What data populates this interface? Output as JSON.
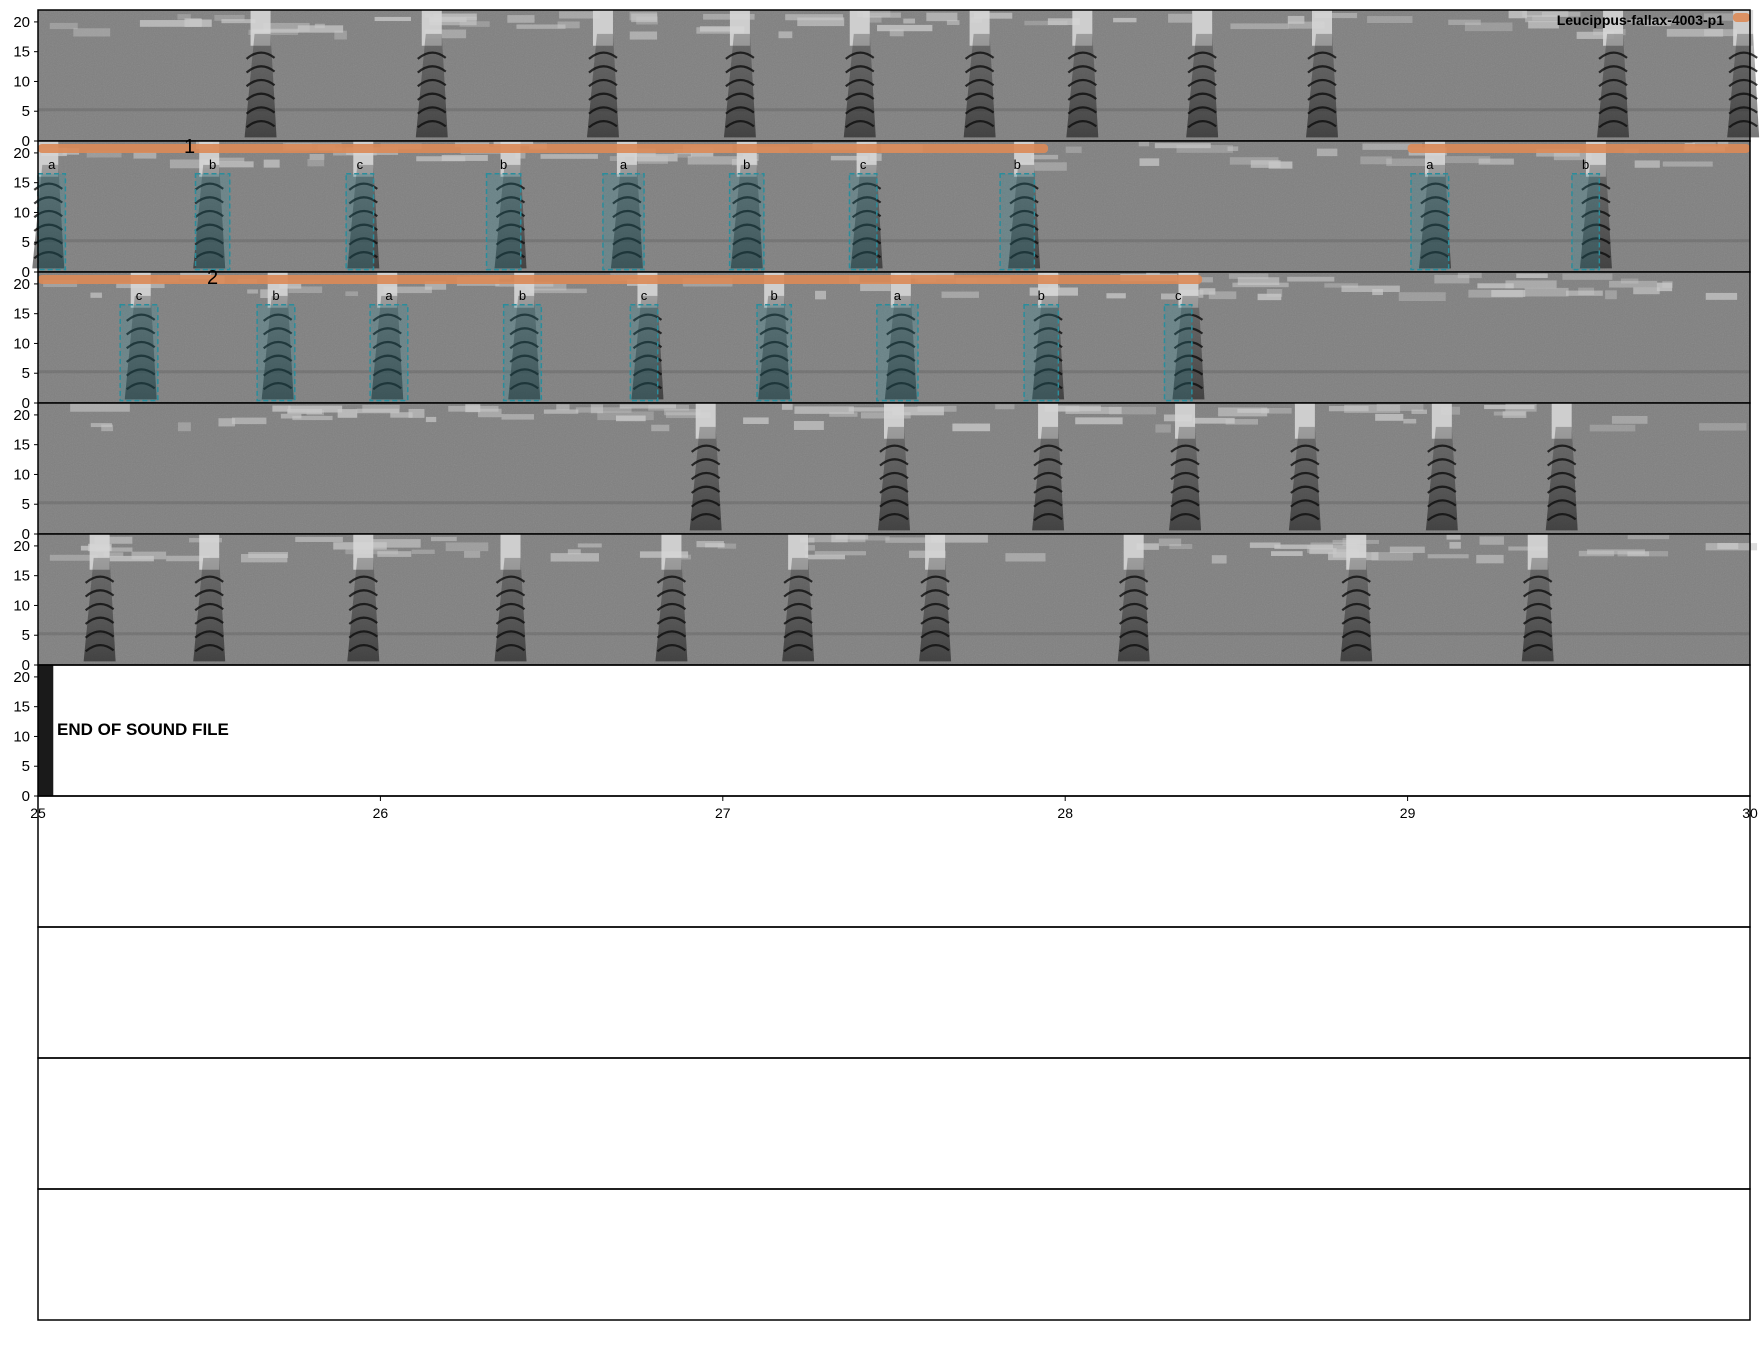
{
  "title": "Leucippus-fallax-4003-p1",
  "end_label": "END OF SOUND FILE",
  "chart_data": {
    "type": "spectrogram",
    "title": "Leucippus-fallax-4003-p1",
    "xlabel": "",
    "ylabel": "",
    "row_count": 10,
    "seconds_per_row": 5,
    "ylim": [
      0,
      22
    ],
    "y_ticks": [
      0,
      5,
      10,
      15,
      20
    ],
    "bottom_axis_ticks": [
      25,
      26,
      27,
      28,
      29,
      30
    ],
    "sound_end_time": 25.03,
    "syllable_labels": [
      "a",
      "b",
      "c"
    ],
    "phrase_labels": [
      "1",
      "2"
    ],
    "colors": {
      "background": "#7f7f7f",
      "bands": "#222222",
      "annotation_box": "#2a8d9c",
      "phrase_bar": "#dc8a56"
    },
    "rows": [
      {
        "start": 0,
        "end": 5,
        "calls": [
          0.65,
          1.15,
          1.65,
          2.05,
          2.4,
          2.75,
          3.05,
          3.4,
          3.75,
          4.6,
          4.98
        ],
        "annotations": [],
        "phrases": [
          {
            "start": 4.95,
            "end": 5.0,
            "label": ""
          }
        ]
      },
      {
        "start": 5,
        "end": 10,
        "calls": [
          5.03,
          5.5,
          5.95,
          6.38,
          6.72,
          7.07,
          7.42,
          7.88,
          9.08,
          9.55
        ],
        "annotations": [
          {
            "label": "a",
            "start": 5.0,
            "end": 5.08
          },
          {
            "label": "b",
            "start": 5.46,
            "end": 5.56
          },
          {
            "label": "c",
            "start": 5.9,
            "end": 5.98
          },
          {
            "label": "b",
            "start": 6.31,
            "end": 6.41
          },
          {
            "label": "a",
            "start": 6.65,
            "end": 6.77
          },
          {
            "label": "b",
            "start": 7.02,
            "end": 7.12
          },
          {
            "label": "c",
            "start": 7.37,
            "end": 7.45
          },
          {
            "label": "b",
            "start": 7.81,
            "end": 7.91
          },
          {
            "label": "a",
            "start": 9.01,
            "end": 9.12
          },
          {
            "label": "b",
            "start": 9.48,
            "end": 9.56
          }
        ],
        "phrases": [
          {
            "start": 5.0,
            "end": 7.95,
            "label": "1"
          },
          {
            "start": 9.0,
            "end": 10.0,
            "label": ""
          }
        ]
      },
      {
        "start": 10,
        "end": 15,
        "calls": [
          10.3,
          10.7,
          11.02,
          11.42,
          11.78,
          12.15,
          12.52,
          12.95,
          13.36
        ],
        "annotations": [
          {
            "label": "c",
            "start": 10.24,
            "end": 10.35
          },
          {
            "label": "b",
            "start": 10.64,
            "end": 10.75
          },
          {
            "label": "a",
            "start": 10.97,
            "end": 11.08
          },
          {
            "label": "b",
            "start": 11.36,
            "end": 11.47
          },
          {
            "label": "c",
            "start": 11.73,
            "end": 11.81
          },
          {
            "label": "b",
            "start": 12.1,
            "end": 12.2
          },
          {
            "label": "a",
            "start": 12.45,
            "end": 12.57
          },
          {
            "label": "b",
            "start": 12.88,
            "end": 12.98
          },
          {
            "label": "c",
            "start": 13.29,
            "end": 13.37
          }
        ],
        "phrases": [
          {
            "start": 10.0,
            "end": 13.4,
            "label": "2"
          }
        ]
      },
      {
        "start": 15,
        "end": 20,
        "calls": [
          16.95,
          17.5,
          17.95,
          18.35,
          18.7,
          19.1,
          19.45
        ],
        "annotations": [],
        "phrases": []
      },
      {
        "start": 20,
        "end": 25,
        "calls": [
          20.18,
          20.5,
          20.95,
          21.38,
          21.85,
          22.22,
          22.62,
          23.2,
          23.85,
          24.38
        ],
        "annotations": [],
        "phrases": []
      },
      {
        "start": 25,
        "end": 30,
        "calls": [],
        "annotations": [],
        "phrases": []
      },
      {
        "start": 30,
        "end": 35,
        "calls": [],
        "annotations": [],
        "phrases": []
      },
      {
        "start": 35,
        "end": 40,
        "calls": [],
        "annotations": [],
        "phrases": []
      },
      {
        "start": 40,
        "end": 45,
        "calls": [],
        "annotations": [],
        "phrases": []
      },
      {
        "start": 45,
        "end": 50,
        "calls": [],
        "annotations": [],
        "phrases": []
      }
    ]
  }
}
